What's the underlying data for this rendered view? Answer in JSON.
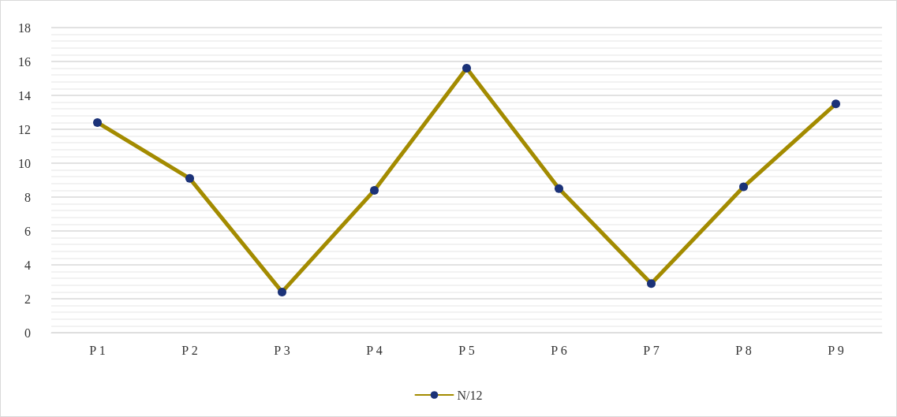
{
  "chart_data": {
    "type": "line",
    "categories": [
      "P 1",
      "P 2",
      "P 3",
      "P 4",
      "P 5",
      "P 6",
      "P 7",
      "P 8",
      "P 9"
    ],
    "series": [
      {
        "name": "N/12",
        "color": "#a38b00",
        "values": [
          12.4,
          9.1,
          2.4,
          8.4,
          15.6,
          8.5,
          2.9,
          8.6,
          13.5
        ]
      }
    ],
    "ylim": [
      0,
      18
    ],
    "yticks": [
      0,
      2,
      4,
      6,
      8,
      10,
      12,
      14,
      16,
      18
    ],
    "grid": "y",
    "legend": "bottom",
    "marker": "circle",
    "line_style": "solid"
  }
}
